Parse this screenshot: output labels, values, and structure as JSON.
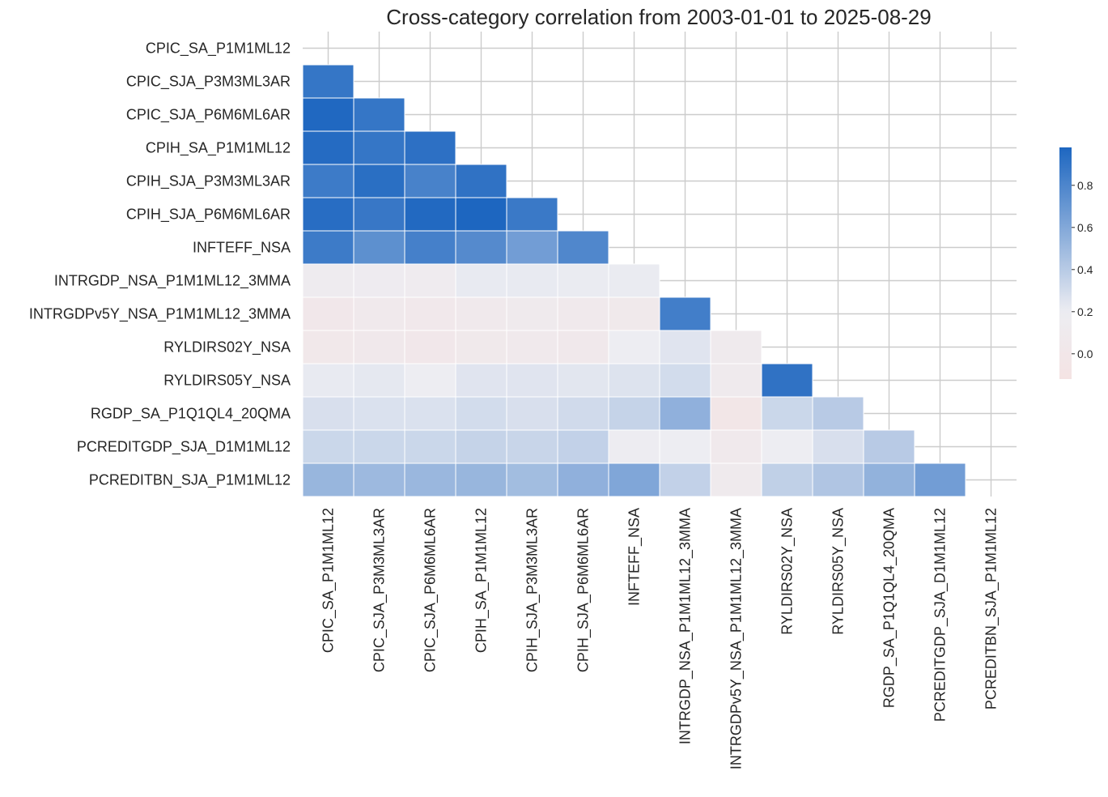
{
  "chart_data": {
    "type": "heatmap",
    "title": "Cross-category correlation from 2003-01-01 to 2025-08-29",
    "xlabel": "",
    "ylabel": "",
    "categories": [
      "CPIC_SA_P1M1ML12",
      "CPIC_SJA_P3M3ML3AR",
      "CPIC_SJA_P6M6ML6AR",
      "CPIH_SA_P1M1ML12",
      "CPIH_SJA_P3M3ML3AR",
      "CPIH_SJA_P6M6ML6AR",
      "INFTEFF_NSA",
      "INTRGDP_NSA_P1M1ML12_3MMA",
      "INTRGDPv5Y_NSA_P1M1ML12_3MMA",
      "RYLDIRS02Y_NSA",
      "RYLDIRS05Y_NSA",
      "RGDP_SA_P1Q1QL4_20QMA",
      "PCREDITGDP_SJA_D1M1ML12",
      "PCREDITBN_SJA_P1M1ML12"
    ],
    "matrix": [
      [],
      [
        0.89
      ],
      [
        0.97,
        0.89
      ],
      [
        0.95,
        0.89,
        0.92
      ],
      [
        0.86,
        0.93,
        0.82,
        0.91
      ],
      [
        0.94,
        0.88,
        0.96,
        0.98,
        0.87
      ],
      [
        0.86,
        0.74,
        0.83,
        0.77,
        0.66,
        0.79
      ],
      [
        0.14,
        0.15,
        0.13,
        0.22,
        0.22,
        0.21,
        0.21
      ],
      [
        0.02,
        0.07,
        0.04,
        0.08,
        0.09,
        0.08,
        0.06,
        0.84
      ],
      [
        0.03,
        0.05,
        0.02,
        0.06,
        0.07,
        0.05,
        0.2,
        0.25,
        0.1
      ],
      [
        0.22,
        0.23,
        0.2,
        0.25,
        0.25,
        0.24,
        0.26,
        0.3,
        0.1,
        0.91
      ],
      [
        0.28,
        0.27,
        0.27,
        0.3,
        0.28,
        0.31,
        0.35,
        0.55,
        -0.03,
        0.33,
        0.4
      ],
      [
        0.33,
        0.33,
        0.33,
        0.35,
        0.34,
        0.36,
        0.18,
        0.19,
        0.08,
        0.19,
        0.28,
        0.4
      ],
      [
        0.52,
        0.5,
        0.51,
        0.52,
        0.48,
        0.55,
        0.61,
        0.36,
        0.09,
        0.37,
        0.43,
        0.54,
        0.66
      ]
    ],
    "colorbar": {
      "ticks": [
        0.0,
        0.2,
        0.4,
        0.6,
        0.8
      ],
      "tick_labels": [
        "0.0",
        "0.2",
        "0.4",
        "0.6",
        "0.8"
      ],
      "min": -0.12,
      "max": 0.98,
      "low_color": "#f4e3e3",
      "mid_color": "#ededf2",
      "high_color": "#1d66c0"
    },
    "grid": true,
    "mask": "upper-triangle"
  }
}
